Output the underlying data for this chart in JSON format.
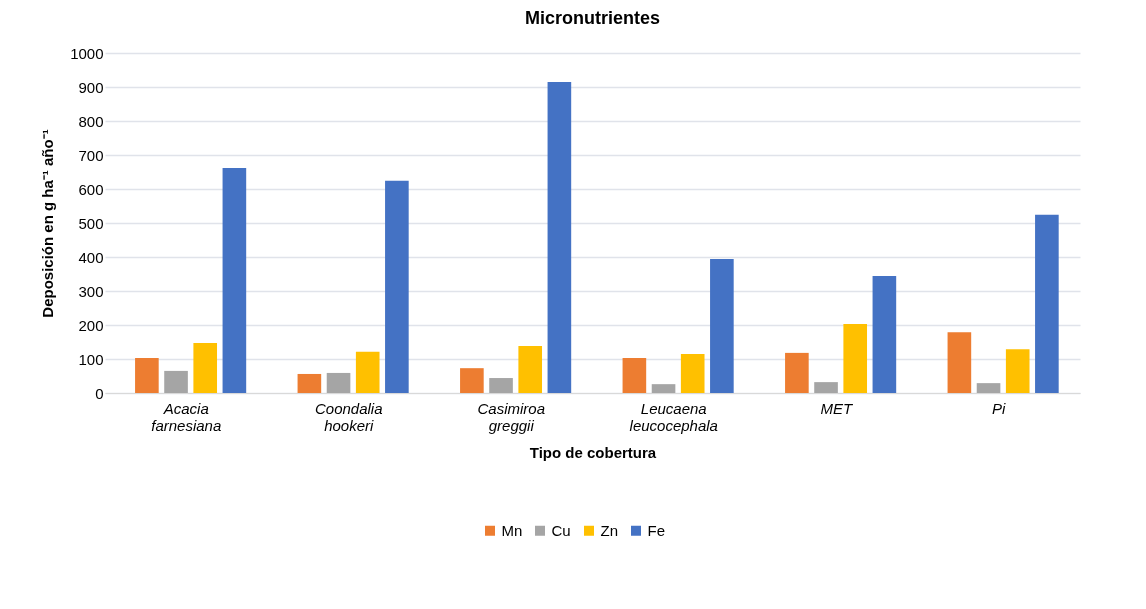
{
  "chart_data": {
    "type": "bar",
    "title": "Micronutrientes",
    "xlabel": "Tipo de cobertura",
    "ylabel": "Deposición en g ha⁻¹ año⁻¹",
    "categories": [
      "Acacia farnesiana",
      "Coondalia hookeri",
      "Casimiroa greggii",
      "Leucaena leucocephala",
      "MET",
      "Pi"
    ],
    "series": [
      {
        "name": "Mn",
        "color": "#ed7d31",
        "values": [
          103,
          56,
          73,
          103,
          118,
          179
        ]
      },
      {
        "name": "Cu",
        "color": "#a5a5a5",
        "values": [
          65,
          59,
          44,
          26,
          32,
          29
        ]
      },
      {
        "name": "Zn",
        "color": "#ffc000",
        "values": [
          147,
          121,
          138,
          115,
          203,
          129
        ]
      },
      {
        "name": "Fe",
        "color": "#4472c4",
        "values": [
          662,
          624,
          915,
          394,
          344,
          524
        ]
      }
    ],
    "ylim": [
      0,
      1000
    ],
    "yticks": [
      0,
      100,
      200,
      300,
      400,
      500,
      600,
      700,
      800,
      900,
      1000
    ],
    "grid": "y",
    "legend": "bottom"
  }
}
